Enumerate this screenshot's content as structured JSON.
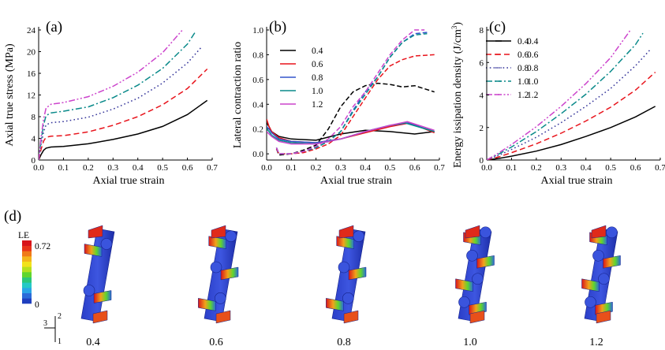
{
  "figure": {
    "panel_d_label": "(d)",
    "model_labels": [
      "0.4",
      "0.6",
      "0.8",
      "1.0",
      "1.2"
    ],
    "colorbar": {
      "title": "LE",
      "max_label": "0.72",
      "min_label": "0"
    },
    "triad": {
      "a": "2",
      "b": "3",
      "c": "1"
    }
  },
  "chart_data": [
    {
      "type": "line",
      "panel_label": "(a)",
      "xlabel": "Axial true strain",
      "ylabel": "Axial true stress (MPa)",
      "xlim": [
        0.0,
        0.7
      ],
      "ylim": [
        0,
        24
      ],
      "xticks": [
        "0.0",
        "0.1",
        "0.2",
        "0.3",
        "0.4",
        "0.5",
        "0.6",
        "0.7"
      ],
      "yticks": [
        "0",
        "4",
        "8",
        "12",
        "16",
        "20",
        "24"
      ],
      "legend_position": "top-right",
      "series": [
        {
          "name": "0.4",
          "color": "#000000",
          "dash": "solid",
          "x": [
            0,
            0.01,
            0.02,
            0.03,
            0.05,
            0.1,
            0.2,
            0.3,
            0.4,
            0.5,
            0.6,
            0.68
          ],
          "y": [
            0,
            1.0,
            1.8,
            2.2,
            2.4,
            2.5,
            3.0,
            3.8,
            4.8,
            6.2,
            8.4,
            11.0
          ]
        },
        {
          "name": "0.6",
          "color": "#e8141c",
          "dash": "dash",
          "x": [
            0,
            0.01,
            0.02,
            0.03,
            0.05,
            0.1,
            0.2,
            0.3,
            0.4,
            0.5,
            0.6,
            0.68
          ],
          "y": [
            0,
            2.0,
            3.5,
            4.2,
            4.4,
            4.5,
            5.2,
            6.4,
            8.0,
            10.2,
            13.2,
            16.8
          ]
        },
        {
          "name": "0.8",
          "color": "#333399",
          "dash": "dot",
          "x": [
            0,
            0.01,
            0.02,
            0.03,
            0.05,
            0.1,
            0.2,
            0.3,
            0.4,
            0.5,
            0.6,
            0.66
          ],
          "y": [
            0,
            3.0,
            5.2,
            6.5,
            6.9,
            7.1,
            7.9,
            9.4,
            11.4,
            14.2,
            17.9,
            21.0
          ]
        },
        {
          "name": "1.0",
          "color": "#0a8a8a",
          "dash": "dashdot",
          "x": [
            0,
            0.01,
            0.02,
            0.03,
            0.05,
            0.1,
            0.2,
            0.3,
            0.4,
            0.5,
            0.6,
            0.63
          ],
          "y": [
            0,
            3.6,
            6.5,
            8.2,
            8.7,
            9.0,
            9.8,
            11.5,
            13.8,
            16.9,
            21.4,
            23.5
          ]
        },
        {
          "name": "1.2",
          "color": "#cc44cc",
          "dash": "dashdotdot",
          "x": [
            0,
            0.01,
            0.02,
            0.03,
            0.05,
            0.1,
            0.2,
            0.3,
            0.4,
            0.5,
            0.58
          ],
          "y": [
            0,
            4.2,
            7.6,
            9.6,
            10.3,
            10.6,
            11.7,
            13.6,
            16.2,
            19.8,
            24.0
          ]
        }
      ]
    },
    {
      "type": "line",
      "panel_label": "(b)",
      "xlabel": "Axial true strain",
      "ylabel": "Lateral contraction ratio",
      "xlim": [
        0.0,
        0.7
      ],
      "ylim": [
        -0.05,
        1.0
      ],
      "xticks": [
        "0.0",
        "0.1",
        "0.2",
        "0.3",
        "0.4",
        "0.5",
        "0.6",
        "0.7"
      ],
      "yticks": [
        "0.0",
        "0.2",
        "0.4",
        "0.6",
        "0.8",
        "1.0"
      ],
      "legend_position": "top-left",
      "series": [
        {
          "name": "0.4",
          "color": "#000000",
          "solid": {
            "x": [
              0,
              0.01,
              0.02,
              0.05,
              0.1,
              0.2,
              0.3,
              0.4,
              0.5,
              0.6,
              0.68
            ],
            "y": [
              0.25,
              0.22,
              0.18,
              0.14,
              0.12,
              0.11,
              0.16,
              0.19,
              0.18,
              0.16,
              0.18
            ]
          },
          "dashed": {
            "x": [
              0.04,
              0.05,
              0.1,
              0.15,
              0.2,
              0.25,
              0.3,
              0.35,
              0.4,
              0.45,
              0.5,
              0.55,
              0.6,
              0.68
            ],
            "y": [
              0.04,
              -0.01,
              0.0,
              0.03,
              0.07,
              0.2,
              0.38,
              0.5,
              0.55,
              0.57,
              0.56,
              0.54,
              0.55,
              0.5
            ]
          }
        },
        {
          "name": "0.6",
          "color": "#e8141c",
          "solid": {
            "x": [
              0,
              0.01,
              0.02,
              0.05,
              0.1,
              0.2,
              0.3,
              0.4,
              0.5,
              0.58,
              0.68
            ],
            "y": [
              0.28,
              0.22,
              0.18,
              0.13,
              0.1,
              0.09,
              0.12,
              0.17,
              0.22,
              0.25,
              0.17
            ]
          },
          "dashed": {
            "x": [
              0.04,
              0.05,
              0.1,
              0.15,
              0.2,
              0.25,
              0.3,
              0.35,
              0.4,
              0.45,
              0.5,
              0.55,
              0.6,
              0.68
            ],
            "y": [
              0.04,
              0.0,
              0.0,
              0.01,
              0.04,
              0.08,
              0.15,
              0.3,
              0.45,
              0.6,
              0.71,
              0.76,
              0.79,
              0.8
            ]
          }
        },
        {
          "name": "0.8",
          "color": "#3355cc",
          "solid": {
            "x": [
              0,
              0.01,
              0.02,
              0.05,
              0.1,
              0.2,
              0.3,
              0.4,
              0.5,
              0.57,
              0.68
            ],
            "y": [
              0.22,
              0.2,
              0.17,
              0.12,
              0.1,
              0.09,
              0.12,
              0.18,
              0.23,
              0.25,
              0.18
            ]
          },
          "dashed": {
            "x": [
              0.04,
              0.05,
              0.1,
              0.15,
              0.2,
              0.25,
              0.3,
              0.35,
              0.4,
              0.45,
              0.5,
              0.55,
              0.6,
              0.65
            ],
            "y": [
              0.05,
              0.0,
              0.0,
              0.02,
              0.05,
              0.1,
              0.18,
              0.35,
              0.5,
              0.62,
              0.78,
              0.9,
              0.97,
              0.98
            ]
          }
        },
        {
          "name": "1.0",
          "color": "#0a8a8a",
          "solid": {
            "x": [
              0,
              0.01,
              0.02,
              0.05,
              0.1,
              0.2,
              0.3,
              0.4,
              0.5,
              0.56,
              0.68
            ],
            "y": [
              0.2,
              0.18,
              0.15,
              0.11,
              0.09,
              0.08,
              0.12,
              0.18,
              0.23,
              0.25,
              0.18
            ]
          },
          "dashed": {
            "x": [
              0.04,
              0.05,
              0.1,
              0.15,
              0.2,
              0.25,
              0.3,
              0.35,
              0.4,
              0.45,
              0.5,
              0.55,
              0.6,
              0.65
            ],
            "y": [
              0.05,
              0.0,
              0.0,
              0.02,
              0.05,
              0.1,
              0.18,
              0.34,
              0.48,
              0.62,
              0.78,
              0.9,
              0.96,
              0.97
            ]
          }
        },
        {
          "name": "1.2",
          "color": "#cc44cc",
          "solid": {
            "x": [
              0,
              0.01,
              0.02,
              0.05,
              0.1,
              0.2,
              0.3,
              0.4,
              0.5,
              0.57,
              0.68
            ],
            "y": [
              0.18,
              0.16,
              0.14,
              0.1,
              0.08,
              0.08,
              0.12,
              0.18,
              0.23,
              0.26,
              0.19
            ]
          },
          "dashed": {
            "x": [
              0.04,
              0.05,
              0.1,
              0.15,
              0.2,
              0.25,
              0.3,
              0.35,
              0.4,
              0.45,
              0.5,
              0.55,
              0.6,
              0.64
            ],
            "y": [
              0.05,
              0.0,
              0.0,
              0.02,
              0.06,
              0.12,
              0.22,
              0.38,
              0.5,
              0.65,
              0.8,
              0.92,
              1.0,
              1.0
            ]
          }
        }
      ]
    },
    {
      "type": "line",
      "panel_label": "(c)",
      "xlabel": "Axial true strain",
      "ylabel": "Energy issipation density (J/cm",
      "ylabel_sup": "3",
      "ylabel_end": ")",
      "xlim": [
        0.0,
        0.7
      ],
      "ylim": [
        0,
        8
      ],
      "xticks": [
        "0.0",
        "0.1",
        "0.2",
        "0.3",
        "0.4",
        "0.5",
        "0.6",
        "0.7"
      ],
      "yticks": [
        "0",
        "2",
        "4",
        "6",
        "8"
      ],
      "legend_position": "top-right",
      "series": [
        {
          "name": "0.4",
          "color": "#000000",
          "dash": "solid",
          "x": [
            0,
            0.05,
            0.1,
            0.2,
            0.3,
            0.4,
            0.5,
            0.6,
            0.68
          ],
          "y": [
            0,
            0.1,
            0.24,
            0.55,
            0.95,
            1.45,
            2.0,
            2.65,
            3.3
          ]
        },
        {
          "name": "0.6",
          "color": "#e8141c",
          "dash": "dash",
          "x": [
            0,
            0.05,
            0.1,
            0.2,
            0.3,
            0.4,
            0.5,
            0.6,
            0.68
          ],
          "y": [
            0,
            0.2,
            0.45,
            1.0,
            1.65,
            2.4,
            3.25,
            4.3,
            5.4
          ]
        },
        {
          "name": "0.8",
          "color": "#333399",
          "dash": "dot",
          "x": [
            0,
            0.05,
            0.1,
            0.2,
            0.3,
            0.4,
            0.5,
            0.6,
            0.66
          ],
          "y": [
            0,
            0.3,
            0.65,
            1.4,
            2.3,
            3.3,
            4.4,
            5.8,
            6.8
          ]
        },
        {
          "name": "1.0",
          "color": "#0a8a8a",
          "dash": "dashdot",
          "x": [
            0,
            0.05,
            0.1,
            0.2,
            0.3,
            0.4,
            0.5,
            0.6,
            0.63
          ],
          "y": [
            0,
            0.38,
            0.8,
            1.75,
            2.85,
            4.05,
            5.45,
            7.1,
            7.8
          ]
        },
        {
          "name": "1.2",
          "color": "#cc44cc",
          "dash": "dashdotdot",
          "x": [
            0,
            0.05,
            0.1,
            0.2,
            0.3,
            0.4,
            0.5,
            0.58
          ],
          "y": [
            0,
            0.45,
            0.95,
            2.05,
            3.3,
            4.7,
            6.3,
            8.0
          ]
        }
      ]
    }
  ]
}
